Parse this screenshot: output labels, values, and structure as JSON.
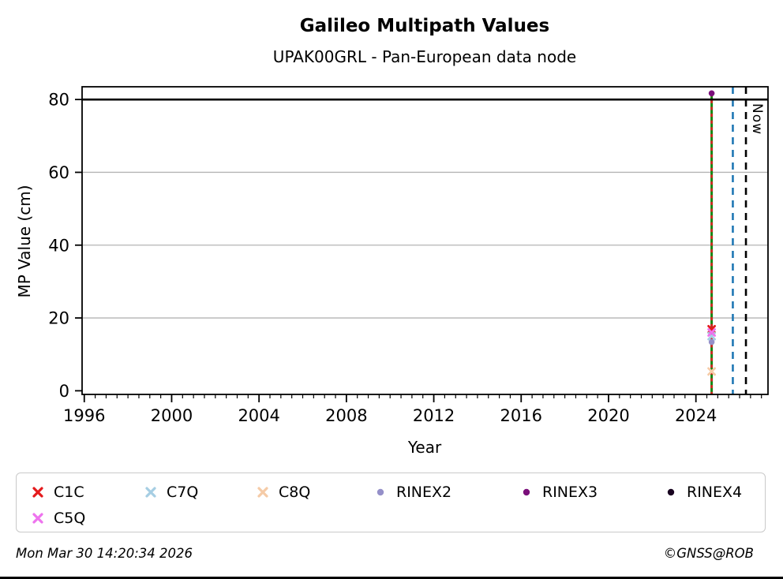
{
  "title": "Galileo Multipath Values",
  "subtitle": "UPAK00GRL - Pan-European data node",
  "footer": {
    "timestamp": "Mon Mar 30 14:20:34 2026",
    "copyright": "©GNSS@ROB"
  },
  "chart_data": {
    "type": "scatter",
    "title": "Galileo Multipath Values",
    "subtitle": "UPAK00GRL - Pan-European data node",
    "xlabel": "Year",
    "ylabel": "MP Value (cm)",
    "xlim": [
      1995.9,
      2027.3
    ],
    "ylim": [
      -1.0,
      83.5
    ],
    "x_major_ticks": [
      1996,
      2000,
      2004,
      2008,
      2012,
      2016,
      2020,
      2024
    ],
    "x_minor_tick_step": 0.5,
    "y_ticks": [
      0,
      20,
      40,
      60,
      80
    ],
    "grid_y": [
      20,
      40,
      60
    ],
    "grid_color": "#b4b4b4",
    "hline": {
      "y": 80,
      "color": "#000000"
    },
    "vlines": [
      {
        "name": "data-epoch-solid-green",
        "x": 2024.72,
        "style": "solid",
        "color": "#128912",
        "y0": -1.0,
        "y1": 81.7
      },
      {
        "name": "data-epoch-dashed-red",
        "x": 2024.72,
        "style": "dashed",
        "color": "#dd2222",
        "y0": -1.0,
        "y1": 81.7,
        "dash": "4,4.6"
      },
      {
        "name": "latency-dashed-blue",
        "x": 2025.69,
        "style": "dashed",
        "color": "#1f77b4",
        "y0": -1.0,
        "y1": 83.5,
        "dash": "9,7"
      },
      {
        "name": "now-dashed-black",
        "x": 2026.29,
        "style": "dashed",
        "color": "#000000",
        "y0": -1.0,
        "y1": 83.5,
        "dash": "9,7",
        "label": "Now"
      }
    ],
    "series": [
      {
        "name": "C1C",
        "marker": "x",
        "color": "#e41a1c",
        "points": [
          [
            2024.72,
            16.9
          ]
        ]
      },
      {
        "name": "C7Q",
        "marker": "x",
        "color": "#a6cee3",
        "points": [
          [
            2024.72,
            15.0
          ]
        ]
      },
      {
        "name": "C8Q",
        "marker": "x",
        "color": "#f5cba7",
        "points": [
          [
            2024.72,
            5.3
          ]
        ]
      },
      {
        "name": "RINEX2",
        "marker": "circle",
        "color": "#9590c9",
        "points": [
          [
            2024.72,
            13.4
          ]
        ]
      },
      {
        "name": "RINEX3",
        "marker": "circle",
        "color": "#7a0f7a",
        "points": [
          [
            2024.72,
            81.7
          ]
        ]
      },
      {
        "name": "RINEX4",
        "marker": "circle",
        "color": "#190320",
        "points": []
      },
      {
        "name": "C5Q",
        "marker": "x",
        "color": "#ee73ee",
        "points": [
          [
            2024.72,
            16.0
          ]
        ]
      }
    ],
    "legend": {
      "position": "bottom",
      "order": [
        "C1C",
        "C7Q",
        "C8Q",
        "RINEX2",
        "RINEX3",
        "RINEX4",
        "C5Q"
      ]
    }
  }
}
